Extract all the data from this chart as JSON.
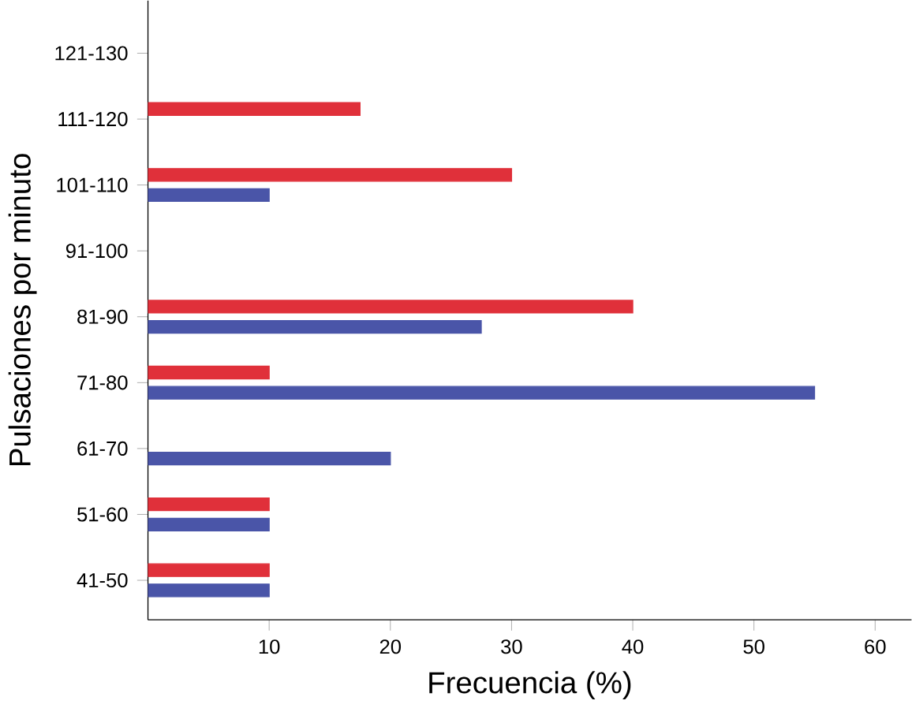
{
  "chart_data": {
    "type": "bar",
    "orientation": "horizontal",
    "xlabel": "Frecuencia   (%)",
    "ylabel": "Pulsaciones por minuto",
    "categories": [
      "121-130",
      "111-120",
      "101-110",
      "91-100",
      "81-90",
      "71-80",
      "61-70",
      "51-60",
      "41-50"
    ],
    "series": [
      {
        "color": "#e0303a",
        "values": [
          null,
          17.5,
          30,
          null,
          40,
          10,
          null,
          10,
          10
        ]
      },
      {
        "color": "#4a55a8",
        "values": [
          null,
          null,
          10,
          null,
          27.5,
          55,
          20,
          10,
          10
        ]
      }
    ],
    "xlim": [
      0,
      63
    ],
    "xticks": [
      10,
      20,
      30,
      40,
      50,
      60
    ]
  }
}
